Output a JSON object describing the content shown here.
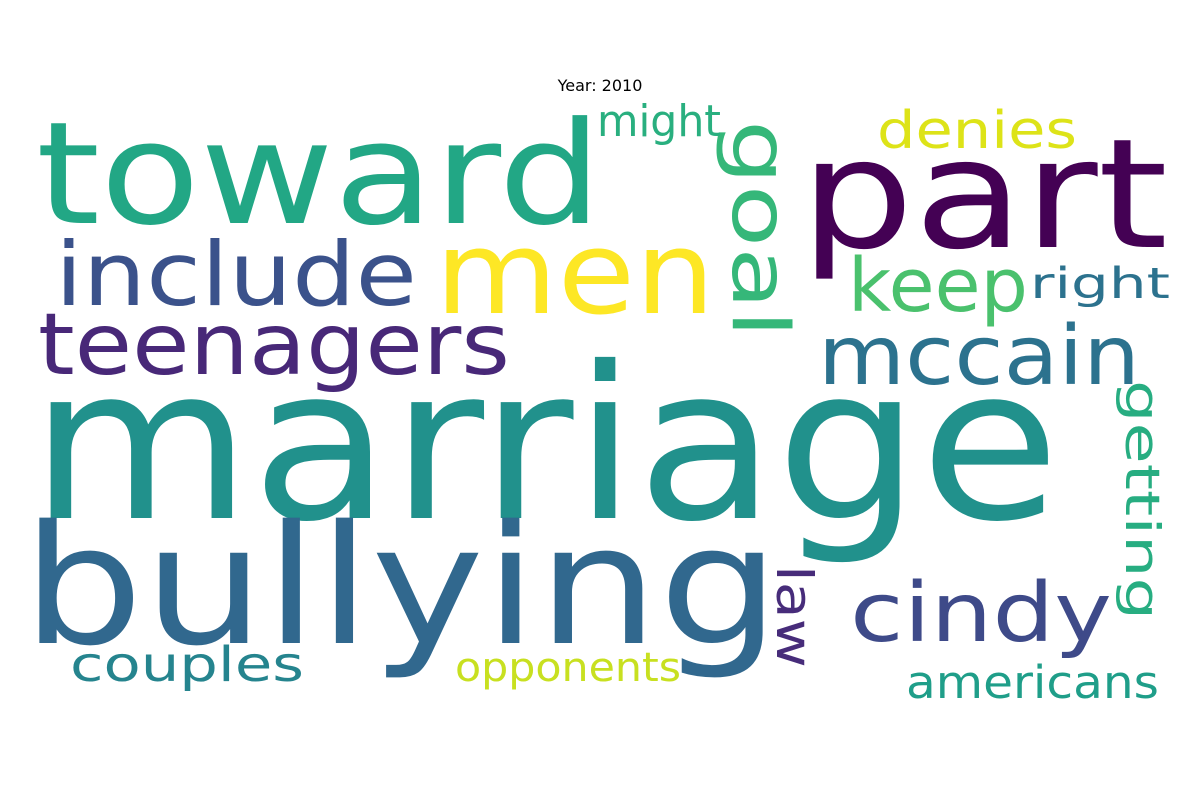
{
  "title": "Year: 2010",
  "words": [
    {
      "text": "marriage",
      "color": "#21918c"
    },
    {
      "text": "bullying",
      "color": "#31688e"
    },
    {
      "text": "toward",
      "color": "#22a785"
    },
    {
      "text": "part",
      "color": "#440154"
    },
    {
      "text": "men",
      "color": "#fde725"
    },
    {
      "text": "include",
      "color": "#3b528b"
    },
    {
      "text": "teenagers",
      "color": "#482878"
    },
    {
      "text": "mccain",
      "color": "#2c728e"
    },
    {
      "text": "cindy",
      "color": "#3e4a89"
    },
    {
      "text": "keep",
      "color": "#4ac16d"
    },
    {
      "text": "goal",
      "color": "#35b779"
    },
    {
      "text": "denies",
      "color": "#dde318"
    },
    {
      "text": "might",
      "color": "#29af7f"
    },
    {
      "text": "right",
      "color": "#2c728e"
    },
    {
      "text": "getting",
      "color": "#27ad81"
    },
    {
      "text": "law",
      "color": "#472c7a"
    },
    {
      "text": "couples",
      "color": "#25848e"
    },
    {
      "text": "opponents",
      "color": "#c8e020"
    },
    {
      "text": "americans",
      "color": "#1f9e89"
    }
  ]
}
